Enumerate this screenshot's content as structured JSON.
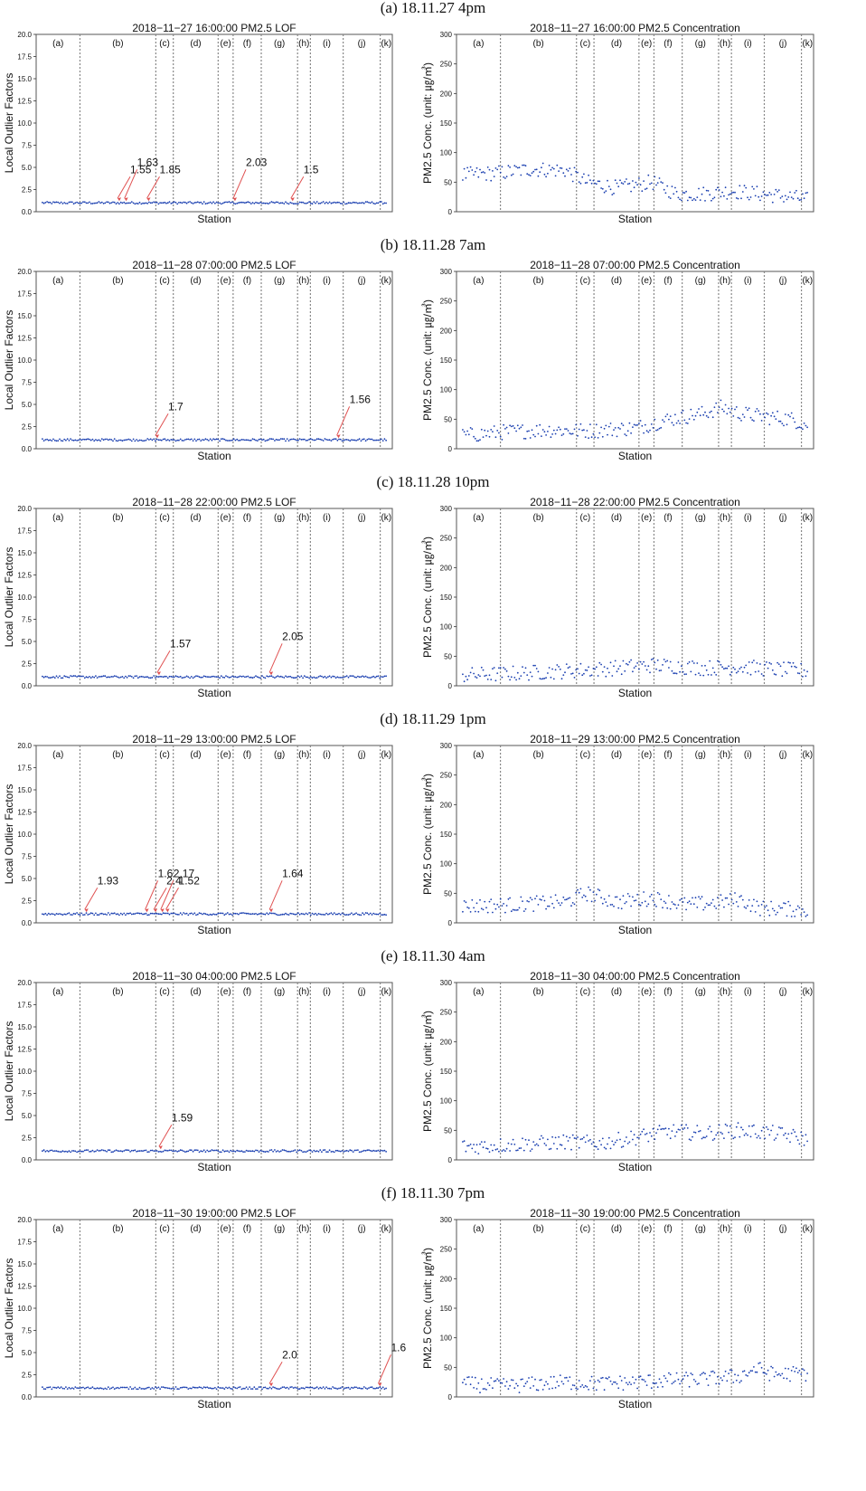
{
  "figure": {
    "colors": {
      "point": "#1a3fb0",
      "annotation_arrow": "#e05050",
      "divider": "#888888",
      "frame": "#555555"
    },
    "regions": [
      "(a)",
      "(b)",
      "(c)",
      "(d)",
      "(e)",
      "(f)",
      "(g)",
      "(h)",
      "(i)",
      "(j)",
      "(k)"
    ],
    "region_boundaries": [
      0,
      0.123,
      0.336,
      0.385,
      0.511,
      0.553,
      0.632,
      0.734,
      0.77,
      0.862,
      0.966,
      1
    ]
  },
  "chart_data": [
    {
      "row_title": "(a) 18.11.27 4pm",
      "lof": {
        "type": "scatter",
        "title": "2018−11−27 16:00:00 PM2.5 LOF",
        "xlabel": "Station",
        "ylabel": "Local Outlier Factors",
        "ylim": [
          0,
          20
        ],
        "yticks": [
          "0.0",
          "2.5",
          "5.0",
          "7.5",
          "10.0",
          "12.5",
          "15.0",
          "17.5",
          "20.0"
        ],
        "baseline": 1.0,
        "annotations": [
          {
            "label": "1.55",
            "x": 0.22
          },
          {
            "label": "1.63",
            "x": 0.24
          },
          {
            "label": "1.85",
            "x": 0.305
          },
          {
            "label": "2.03",
            "x": 0.555
          },
          {
            "label": "1.5",
            "x": 0.722
          }
        ]
      },
      "conc": {
        "type": "scatter",
        "title": "2018−11−27 16:00:00 PM2.5 Concentration",
        "xlabel": "Station",
        "ylabel": "PM2.5 Conc. (unit: ㎍/㎥)",
        "ylim": [
          0,
          300
        ],
        "yticks": [
          "0",
          "50",
          "100",
          "150",
          "200",
          "250",
          "300"
        ],
        "series_profile": [
          [
            0,
            62
          ],
          [
            0.12,
            66
          ],
          [
            0.2,
            72
          ],
          [
            0.3,
            70
          ],
          [
            0.36,
            50
          ],
          [
            0.45,
            40
          ],
          [
            0.55,
            50
          ],
          [
            0.62,
            30
          ],
          [
            0.7,
            30
          ],
          [
            0.78,
            35
          ],
          [
            0.86,
            30
          ],
          [
            0.95,
            25
          ],
          [
            1,
            20
          ]
        ]
      }
    },
    {
      "row_title": "(b) 18.11.28 7am",
      "lof": {
        "type": "scatter",
        "title": "2018−11−28 07:00:00 PM2.5 LOF",
        "xlabel": "Station",
        "ylabel": "Local Outlier Factors",
        "ylim": [
          0,
          20
        ],
        "yticks": [
          "0.0",
          "2.5",
          "5.0",
          "7.5",
          "10.0",
          "12.5",
          "15.0",
          "17.5",
          "20.0"
        ],
        "baseline": 1.0,
        "annotations": [
          {
            "label": "1.7",
            "x": 0.33
          },
          {
            "label": "1.56",
            "x": 0.855
          }
        ]
      },
      "conc": {
        "type": "scatter",
        "title": "2018−11−28 07:00:00 PM2.5 Concentration",
        "xlabel": "Station",
        "ylabel": "PM2.5 Conc. (unit: ㎍/㎥)",
        "ylim": [
          0,
          300
        ],
        "yticks": [
          "0",
          "50",
          "100",
          "150",
          "200",
          "250",
          "300"
        ],
        "series_profile": [
          [
            0,
            22
          ],
          [
            0.12,
            28
          ],
          [
            0.25,
            32
          ],
          [
            0.36,
            30
          ],
          [
            0.5,
            35
          ],
          [
            0.6,
            50
          ],
          [
            0.7,
            60
          ],
          [
            0.75,
            70
          ],
          [
            0.8,
            60
          ],
          [
            0.86,
            55
          ],
          [
            0.95,
            50
          ],
          [
            1,
            40
          ]
        ]
      }
    },
    {
      "row_title": "(c) 18.11.28 10pm",
      "lof": {
        "type": "scatter",
        "title": "2018−11−28 22:00:00 PM2.5 LOF",
        "xlabel": "Station",
        "ylabel": "Local Outlier Factors",
        "ylim": [
          0,
          20
        ],
        "yticks": [
          "0.0",
          "2.5",
          "5.0",
          "7.5",
          "10.0",
          "12.5",
          "15.0",
          "17.5",
          "20.0"
        ],
        "baseline": 1.0,
        "annotations": [
          {
            "label": "1.57",
            "x": 0.335
          },
          {
            "label": "2.05",
            "x": 0.66
          }
        ]
      },
      "conc": {
        "type": "scatter",
        "title": "2018−11−28 22:00:00 PM2.5 Concentration",
        "xlabel": "Station",
        "ylabel": "PM2.5 Conc. (unit: ㎍/㎥)",
        "ylim": [
          0,
          300
        ],
        "yticks": [
          "0",
          "50",
          "100",
          "150",
          "200",
          "250",
          "300"
        ],
        "series_profile": [
          [
            0,
            18
          ],
          [
            0.12,
            20
          ],
          [
            0.3,
            25
          ],
          [
            0.4,
            28
          ],
          [
            0.55,
            35
          ],
          [
            0.7,
            30
          ],
          [
            0.8,
            32
          ],
          [
            0.9,
            28
          ],
          [
            1,
            25
          ]
        ]
      }
    },
    {
      "row_title": "(d) 18.11.29 1pm",
      "lof": {
        "type": "scatter",
        "title": "2018−11−29 13:00:00 PM2.5 LOF",
        "xlabel": "Station",
        "ylabel": "Local Outlier Factors",
        "ylim": [
          0,
          20
        ],
        "yticks": [
          "0.0",
          "2.5",
          "5.0",
          "7.5",
          "10.0",
          "12.5",
          "15.0",
          "17.5",
          "20.0"
        ],
        "baseline": 1.0,
        "annotations": [
          {
            "label": "1.93",
            "x": 0.125
          },
          {
            "label": "1.6",
            "x": 0.3
          },
          {
            "label": "2.4",
            "x": 0.325
          },
          {
            "label": "2.17",
            "x": 0.345
          },
          {
            "label": "1.52",
            "x": 0.36
          },
          {
            "label": "1.64",
            "x": 0.66
          }
        ]
      },
      "conc": {
        "type": "scatter",
        "title": "2018−11−29 13:00:00 PM2.5 Concentration",
        "xlabel": "Station",
        "ylabel": "PM2.5 Conc. (unit: ㎍/㎥)",
        "ylim": [
          0,
          300
        ],
        "yticks": [
          "0",
          "50",
          "100",
          "150",
          "200",
          "250",
          "300"
        ],
        "series_profile": [
          [
            0,
            28
          ],
          [
            0.12,
            30
          ],
          [
            0.3,
            35
          ],
          [
            0.36,
            50
          ],
          [
            0.45,
            35
          ],
          [
            0.55,
            42
          ],
          [
            0.65,
            30
          ],
          [
            0.75,
            35
          ],
          [
            0.8,
            40
          ],
          [
            0.86,
            25
          ],
          [
            1,
            22
          ]
        ]
      }
    },
    {
      "row_title": "(e) 18.11.30 4am",
      "lof": {
        "type": "scatter",
        "title": "2018−11−30 04:00:00 PM2.5 LOF",
        "xlabel": "Station",
        "ylabel": "Local Outlier Factors",
        "ylim": [
          0,
          20
        ],
        "yticks": [
          "0.0",
          "2.5",
          "5.0",
          "7.5",
          "10.0",
          "12.5",
          "15.0",
          "17.5",
          "20.0"
        ],
        "baseline": 1.0,
        "annotations": [
          {
            "label": "1.59",
            "x": 0.34
          }
        ]
      },
      "conc": {
        "type": "scatter",
        "title": "2018−11−30 04:00:00 PM2.5 Concentration",
        "xlabel": "Station",
        "ylabel": "PM2.5 Conc. (unit: ㎍/㎥)",
        "ylim": [
          0,
          300
        ],
        "yticks": [
          "0",
          "50",
          "100",
          "150",
          "200",
          "250",
          "300"
        ],
        "series_profile": [
          [
            0,
            22
          ],
          [
            0.12,
            25
          ],
          [
            0.3,
            30
          ],
          [
            0.4,
            28
          ],
          [
            0.5,
            38
          ],
          [
            0.6,
            48
          ],
          [
            0.7,
            45
          ],
          [
            0.8,
            50
          ],
          [
            0.9,
            45
          ],
          [
            1,
            35
          ]
        ]
      }
    },
    {
      "row_title": "(f) 18.11.30 7pm",
      "lof": {
        "type": "scatter",
        "title": "2018−11−30 19:00:00 PM2.5 LOF",
        "xlabel": "Station",
        "ylabel": "Local Outlier Factors",
        "ylim": [
          0,
          20
        ],
        "yticks": [
          "0.0",
          "2.5",
          "5.0",
          "7.5",
          "10.0",
          "12.5",
          "15.0",
          "17.5",
          "20.0"
        ],
        "baseline": 1.0,
        "annotations": [
          {
            "label": "2.0",
            "x": 0.66
          },
          {
            "label": "1.6",
            "x": 0.975
          }
        ]
      },
      "conc": {
        "type": "scatter",
        "title": "2018−11−30 19:00:00 PM2.5 Concentration",
        "xlabel": "Station",
        "ylabel": "PM2.5 Conc. (unit: ㎍/㎥)",
        "ylim": [
          0,
          300
        ],
        "yticks": [
          "0",
          "50",
          "100",
          "150",
          "200",
          "250",
          "300"
        ],
        "series_profile": [
          [
            0,
            22
          ],
          [
            0.12,
            18
          ],
          [
            0.3,
            25
          ],
          [
            0.4,
            22
          ],
          [
            0.5,
            25
          ],
          [
            0.6,
            28
          ],
          [
            0.7,
            30
          ],
          [
            0.8,
            35
          ],
          [
            0.85,
            48
          ],
          [
            0.9,
            38
          ],
          [
            1,
            40
          ]
        ]
      }
    }
  ]
}
